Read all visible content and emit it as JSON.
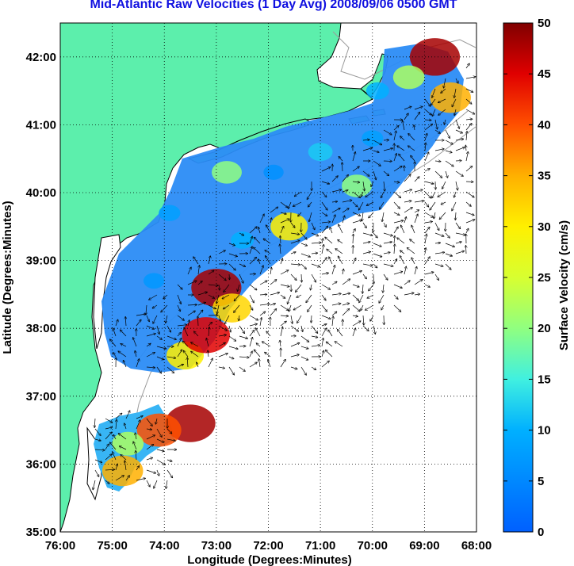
{
  "chart_data": {
    "type": "heatmap",
    "title": "Mid-Atlantic Raw Velocities (1 Day Avg) 2008/09/06 0500 GMT",
    "xlabel": "Longitude (Degrees:Minutes)",
    "ylabel": "Latitude (Degrees:Minutes)",
    "x_ticks": [
      "76:00",
      "75:00",
      "74:00",
      "73:00",
      "72:00",
      "71:00",
      "70:00",
      "69:00",
      "68:00"
    ],
    "y_ticks": [
      "35:00",
      "36:00",
      "37:00",
      "38:00",
      "39:00",
      "40:00",
      "41:00",
      "42:00"
    ],
    "xlim": [
      -76,
      -68
    ],
    "ylim": [
      35,
      42.5
    ],
    "grid": "dotted",
    "colorbar": {
      "label": "Surface Velocity (cm/s)",
      "min": 0,
      "max": 50,
      "ticks": [
        "0",
        "5",
        "10",
        "15",
        "20",
        "25",
        "30",
        "35",
        "40",
        "45",
        "50"
      ],
      "colormap": "jet"
    },
    "colors": {
      "land": "#5cefac",
      "ocean": "#ffffff",
      "coast": "#000000",
      "bathymetry": "#9a9a9a"
    },
    "velocity_zones": [
      {
        "lon": -73.0,
        "lat": 38.6,
        "speed": 48
      },
      {
        "lon": -73.6,
        "lat": 37.6,
        "speed": 30
      },
      {
        "lon": -73.2,
        "lat": 37.9,
        "speed": 45
      },
      {
        "lon": -72.7,
        "lat": 38.3,
        "speed": 32
      },
      {
        "lon": -71.6,
        "lat": 39.5,
        "speed": 30
      },
      {
        "lon": -70.3,
        "lat": 40.1,
        "speed": 20
      },
      {
        "lon": -68.8,
        "lat": 42.0,
        "speed": 48
      },
      {
        "lon": -68.5,
        "lat": 41.4,
        "speed": 35
      },
      {
        "lon": -69.3,
        "lat": 41.7,
        "speed": 22
      },
      {
        "lon": -73.5,
        "lat": 36.6,
        "speed": 48
      },
      {
        "lon": -74.1,
        "lat": 36.5,
        "speed": 40
      },
      {
        "lon": -74.8,
        "lat": 35.9,
        "speed": 35
      },
      {
        "lon": -74.7,
        "lat": 36.3,
        "speed": 22
      },
      {
        "lon": -72.8,
        "lat": 40.3,
        "speed": 20
      },
      {
        "lon": -71.0,
        "lat": 40.6,
        "speed": 12
      },
      {
        "lon": -72.5,
        "lat": 39.3,
        "speed": 10
      },
      {
        "lon": -74.2,
        "lat": 38.7,
        "speed": 7
      },
      {
        "lon": -73.9,
        "lat": 39.7,
        "speed": 8
      },
      {
        "lon": -71.9,
        "lat": 40.3,
        "speed": 6
      },
      {
        "lon": -70.0,
        "lat": 40.8,
        "speed": 8
      },
      {
        "lon": -69.9,
        "lat": 41.5,
        "speed": 10
      }
    ]
  }
}
